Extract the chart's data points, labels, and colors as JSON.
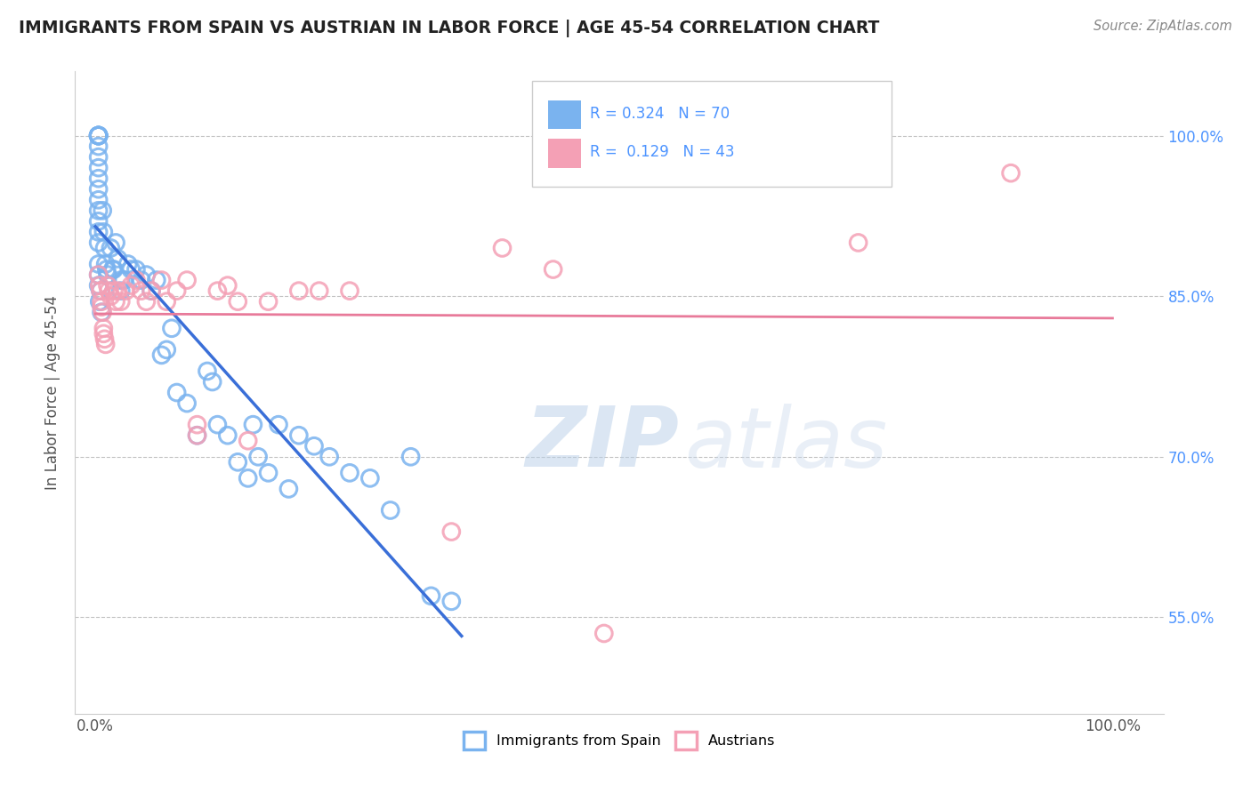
{
  "title": "IMMIGRANTS FROM SPAIN VS AUSTRIAN IN LABOR FORCE | AGE 45-54 CORRELATION CHART",
  "source": "Source: ZipAtlas.com",
  "ylabel": "In Labor Force | Age 45-54",
  "xlim": [
    -0.02,
    1.05
  ],
  "ylim": [
    0.46,
    1.06
  ],
  "ytick_labels": [
    "55.0%",
    "70.0%",
    "85.0%",
    "100.0%"
  ],
  "ytick_vals": [
    0.55,
    0.7,
    0.85,
    1.0
  ],
  "xtick_labels": [
    "0.0%",
    "100.0%"
  ],
  "xtick_vals": [
    0.0,
    1.0
  ],
  "blue_label": "Immigrants from Spain",
  "pink_label": "Austrians",
  "R_blue": 0.324,
  "N_blue": 70,
  "R_pink": 0.129,
  "N_pink": 43,
  "blue_color": "#7ab3ef",
  "pink_color": "#f4a0b5",
  "blue_line_color": "#3a6fd8",
  "pink_line_color": "#e87a9a",
  "background_color": "#ffffff",
  "watermark_zip": "ZIP",
  "watermark_atlas": "atlas",
  "blue_x": [
    0.003,
    0.003,
    0.003,
    0.003,
    0.003,
    0.003,
    0.003,
    0.003,
    0.003,
    0.003,
    0.003,
    0.003,
    0.003,
    0.003,
    0.003,
    0.003,
    0.003,
    0.003,
    0.003,
    0.003,
    0.007,
    0.008,
    0.009,
    0.01,
    0.011,
    0.012,
    0.015,
    0.017,
    0.02,
    0.022,
    0.025,
    0.028,
    0.032,
    0.035,
    0.04,
    0.045,
    0.05,
    0.055,
    0.06,
    0.065,
    0.07,
    0.075,
    0.08,
    0.09,
    0.1,
    0.11,
    0.115,
    0.12,
    0.13,
    0.14,
    0.15,
    0.155,
    0.16,
    0.17,
    0.18,
    0.19,
    0.2,
    0.215,
    0.23,
    0.25,
    0.27,
    0.29,
    0.31,
    0.33,
    0.35,
    0.005,
    0.004,
    0.006,
    0.018,
    0.025
  ],
  "blue_y": [
    1.0,
    1.0,
    1.0,
    1.0,
    1.0,
    1.0,
    1.0,
    0.99,
    0.98,
    0.97,
    0.96,
    0.95,
    0.94,
    0.93,
    0.92,
    0.91,
    0.9,
    0.88,
    0.87,
    0.86,
    0.93,
    0.91,
    0.895,
    0.88,
    0.875,
    0.87,
    0.895,
    0.875,
    0.9,
    0.885,
    0.865,
    0.865,
    0.88,
    0.875,
    0.875,
    0.865,
    0.87,
    0.855,
    0.865,
    0.795,
    0.8,
    0.82,
    0.76,
    0.75,
    0.72,
    0.78,
    0.77,
    0.73,
    0.72,
    0.695,
    0.68,
    0.73,
    0.7,
    0.685,
    0.73,
    0.67,
    0.72,
    0.71,
    0.7,
    0.685,
    0.68,
    0.65,
    0.7,
    0.57,
    0.565,
    0.855,
    0.845,
    0.835,
    0.875,
    0.855
  ],
  "pink_x": [
    0.003,
    0.004,
    0.005,
    0.006,
    0.006,
    0.007,
    0.008,
    0.008,
    0.009,
    0.01,
    0.012,
    0.013,
    0.015,
    0.018,
    0.02,
    0.022,
    0.025,
    0.03,
    0.035,
    0.04,
    0.045,
    0.05,
    0.055,
    0.065,
    0.07,
    0.08,
    0.09,
    0.1,
    0.12,
    0.13,
    0.14,
    0.15,
    0.17,
    0.2,
    0.22,
    0.25,
    0.35,
    0.4,
    0.45,
    0.5,
    0.75,
    0.9,
    0.1
  ],
  "pink_y": [
    0.87,
    0.86,
    0.855,
    0.845,
    0.84,
    0.835,
    0.82,
    0.815,
    0.81,
    0.805,
    0.86,
    0.855,
    0.85,
    0.855,
    0.845,
    0.855,
    0.845,
    0.855,
    0.86,
    0.865,
    0.855,
    0.845,
    0.855,
    0.865,
    0.845,
    0.855,
    0.865,
    0.72,
    0.855,
    0.86,
    0.845,
    0.715,
    0.845,
    0.855,
    0.855,
    0.855,
    0.63,
    0.895,
    0.875,
    0.535,
    0.9,
    0.965,
    0.73
  ]
}
